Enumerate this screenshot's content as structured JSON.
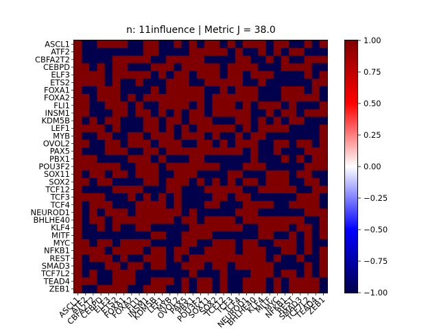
{
  "chart_data": {
    "type": "heatmap",
    "title": "n: 11influence | Metric J = 38.0",
    "genes": [
      "ASCL1",
      "ATF2",
      "CBFA2T2",
      "CEBPD",
      "ELF3",
      "ETS2",
      "FOXA1",
      "FOXA2",
      "FLI1",
      "INSM1",
      "KDM5B",
      "LEF1",
      "MYB",
      "OVOL2",
      "PAX5",
      "PBX1",
      "POU3F2",
      "SOX11",
      "SOX2",
      "TCF12",
      "TCF3",
      "TCF4",
      "NEUROD1",
      "BHLHE40",
      "KLF4",
      "MITF",
      "MYC",
      "NFKB1",
      "REST",
      "SMAD3",
      "TCF7L2",
      "TEAD4",
      "ZEB1"
    ],
    "colorbar": {
      "min": -1.0,
      "max": 1.0,
      "ticks": [
        "1.00",
        "0.75",
        "0.50",
        "0.25",
        "0.00",
        "−0.25",
        "−0.50",
        "−0.75",
        "−1.00"
      ],
      "tick_values": [
        1,
        0.75,
        0.5,
        0.25,
        0,
        -0.25,
        -0.5,
        -0.75,
        -1
      ],
      "colormap": "seismic"
    },
    "colors": {
      "high": "#800000",
      "low": "#00004c"
    },
    "values_bits": [
      "100111100110010101101011101100101",
      "100000000110000111110100101011000",
      "100001111100111110000110010100111",
      "110101100011101111101111000111100",
      "111101111101011011101101110000101",
      "111101001000111001111100100000011",
      "100111000010111110010111000111010",
      "110111010111111110111111000111110",
      "110011101001111010111010111010001",
      "110001101101010110111110010110111",
      "101011000110110111000110101011000",
      "111101000110101011111010111100001",
      "100110011011101110100101100000001",
      "110011011101110011010111001101101",
      "100011100110111111111101001000111",
      "111000011101000110000001000101011",
      "111111001110111111100011100000111",
      "101101101110011100001100011101100",
      "110110000110111010101011011100110",
      "100001111000110001111100111110011",
      "111100010101010000110110000001110",
      "101110001111010001100011110011110",
      "101011101111110100000111000000111",
      "101101111111101101111011111111001",
      "100101001100000111111100111101101",
      "100000000011001111000000110010101",
      "110110111100001100111011001110100",
      "111101111011011001111011100110101",
      "101110100111010111111111101001001",
      "100011011011001110110111110000101",
      "101001110000000100010001110110101",
      "111001110011101011010011101011110",
      "100111100111001011010011101011110"
    ]
  }
}
